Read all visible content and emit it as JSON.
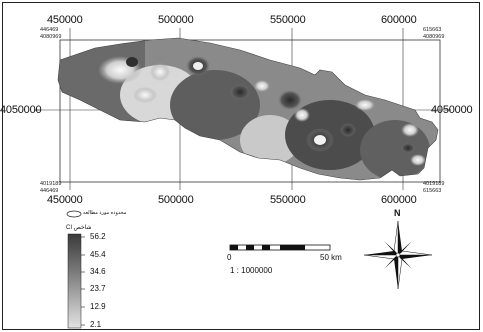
{
  "map": {
    "x_top_labels": [
      "450000",
      "500000",
      "550000",
      "600000"
    ],
    "x_bottom_labels": [
      "450000",
      "500000",
      "550000",
      "600000"
    ],
    "y_left_label": "4050000",
    "y_right_label": "4050000",
    "corner_labels": {
      "top_left_x": "446469",
      "top_left_y": "4080969",
      "top_right_x": "615663",
      "top_right_y": "4080969",
      "bottom_left_x": "446469",
      "bottom_left_y": "4019189",
      "bottom_right_x": "615663",
      "bottom_right_y": "4019189"
    }
  },
  "legend": {
    "title_small": "ﻣﺤﺪﻭﺩﻩ ﻣﻮﺭﺩ ﻣﻄﺎﻟﻌﻪ",
    "ci_label": "CI ﺷﺎﺧﺺ",
    "values": [
      "56.2",
      "45.4",
      "34.6",
      "23.7",
      "12.9",
      "2.1"
    ],
    "colors": {
      "high": "#3a3a3a",
      "low": "#e0e0e0"
    }
  },
  "scale_bar": {
    "start": "0",
    "end": "50 km",
    "ratio": "1 : 1000000"
  },
  "north_arrow": {
    "label": "N"
  }
}
